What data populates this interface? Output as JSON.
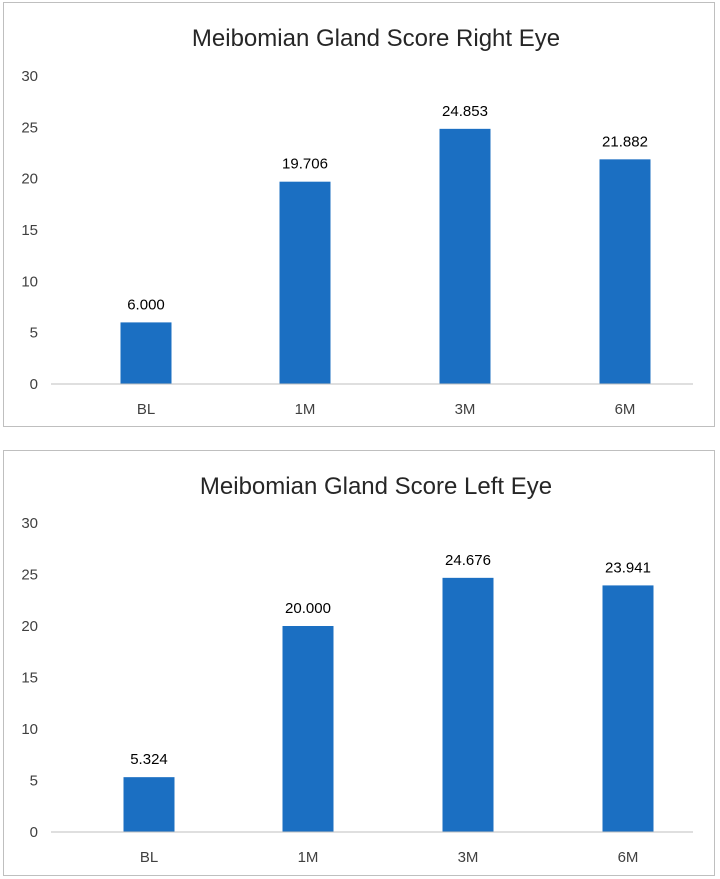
{
  "chart_data": [
    {
      "type": "bar",
      "title": "Meibomian Gland Score Right Eye",
      "categories": [
        "BL",
        "1M",
        "3M",
        "6M"
      ],
      "values": [
        6.0,
        19.706,
        24.853,
        21.882
      ],
      "value_labels": [
        "6.000",
        "19.706",
        "24.853",
        "21.882"
      ],
      "yticks": [
        "0",
        "5",
        "10",
        "15",
        "20",
        "25",
        "30"
      ],
      "ylim": [
        0,
        30
      ],
      "grid": false,
      "legend": "none",
      "bar_color": "#1b6fc2"
    },
    {
      "type": "bar",
      "title": "Meibomian Gland Score Left Eye",
      "categories": [
        "BL",
        "1M",
        "3M",
        "6M"
      ],
      "values": [
        5.324,
        20.0,
        24.676,
        23.941
      ],
      "value_labels": [
        "5.324",
        "20.000",
        "24.676",
        "23.941"
      ],
      "yticks": [
        "0",
        "5",
        "10",
        "15",
        "20",
        "25",
        "30"
      ],
      "ylim": [
        0,
        30
      ],
      "grid": false,
      "legend": "none",
      "bar_color": "#1b6fc2"
    }
  ]
}
